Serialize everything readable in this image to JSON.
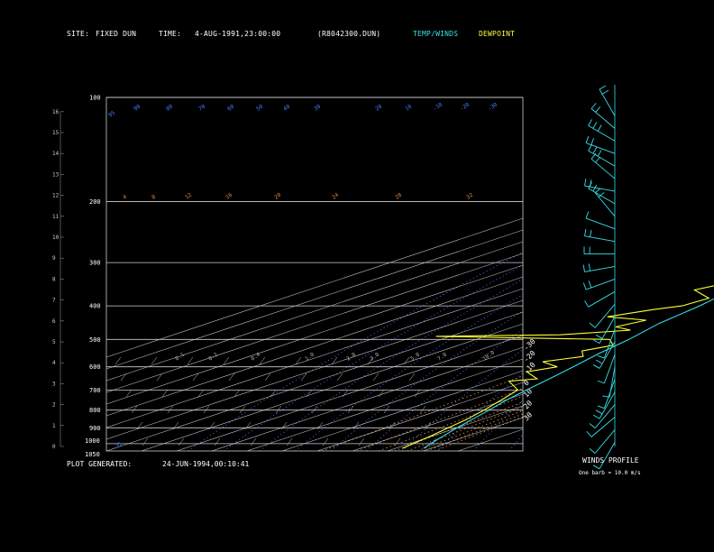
{
  "header": {
    "site_label": "SITE:",
    "site_value": "FIXED DUN",
    "time_label": "TIME:",
    "time_value": "4-AUG-1991,23:00:00",
    "file_value": "(R8042300.DUN)",
    "temp_legend": "TEMP/WINDS",
    "dew_legend": "DEWPOINT"
  },
  "footer": {
    "generated_label": "PLOT GENERATED:",
    "generated_value": "24-JUN-1994,00:10:41"
  },
  "winds": {
    "title": "WINDS PROFILE",
    "note": "One barb = 10.0 m/s"
  },
  "colors": {
    "temperature": "#33e0e8",
    "dewpoint": "#ffff33",
    "mixing_ratio": "#d8884a",
    "dry_adiabat": "#4a78ff",
    "grid": "#cfcfcf",
    "wind_barbs": "#33e0e8"
  },
  "chart_data": {
    "type": "line",
    "yaxis_pressure": {
      "label_values": [
        "100",
        "200",
        "300",
        "400",
        "500",
        "600",
        "700",
        "800",
        "900",
        "1000",
        "1050"
      ],
      "lim": [
        100,
        1050
      ],
      "scale": "log"
    },
    "yaxis_height_km": {
      "ticks": [
        "0",
        "1",
        "2",
        "3",
        "4",
        "5",
        "6",
        "7",
        "8",
        "9",
        "10",
        "11",
        "12",
        "13",
        "14",
        "15",
        "16"
      ]
    },
    "isotherm_labels_top": [
      "-110",
      "-100",
      "-90",
      "-80",
      "-70",
      "-60",
      "-50",
      "-40"
    ],
    "isotherm_labels_right": [
      "-30",
      "-20",
      "-10",
      "0",
      "10",
      "20",
      "30"
    ],
    "isotherm_values_top": [
      -110,
      -100,
      -90,
      -80,
      -70,
      -60,
      -50,
      -40
    ],
    "isotherm_values_right": [
      -30,
      -20,
      -10,
      0,
      10,
      20,
      30
    ],
    "dry_adiabat_labels": [
      "95",
      "90",
      "80",
      "70",
      "60",
      "50",
      "40",
      "30",
      "20",
      "10",
      "-10",
      "-20",
      "-30",
      "-35"
    ],
    "mixing_ratio_labels": [
      "4",
      "8",
      "12",
      "16",
      "20",
      "24",
      "28",
      "32"
    ],
    "mixing_ratio_lower_labels": [
      "0.1",
      "0.2",
      "0.4",
      "1.0",
      "2.0",
      "3.0",
      "5.0",
      "7.0",
      "10.0"
    ],
    "series": [
      {
        "name": "TEMP/WINDS",
        "points": [
          {
            "p": 1032,
            "t": 28.0
          },
          {
            "p": 1000,
            "t": 26.0
          },
          {
            "p": 950,
            "t": 23.0
          },
          {
            "p": 900,
            "t": 20.0
          },
          {
            "p": 850,
            "t": 17.0
          },
          {
            "p": 800,
            "t": 14.0
          },
          {
            "p": 750,
            "t": 10.5
          },
          {
            "p": 700,
            "t": 7.5
          },
          {
            "p": 650,
            "t": 4.5
          },
          {
            "p": 600,
            "t": 1.0
          },
          {
            "p": 550,
            "t": -3.0
          },
          {
            "p": 500,
            "t": -6.5
          },
          {
            "p": 450,
            "t": -11.5
          },
          {
            "p": 400,
            "t": -15.0
          },
          {
            "p": 350,
            "t": -20.5
          },
          {
            "p": 300,
            "t": -27.0
          },
          {
            "p": 250,
            "t": -35.0
          },
          {
            "p": 200,
            "t": -44.0
          },
          {
            "p": 170,
            "t": -51.0
          },
          {
            "p": 150,
            "t": -58.0
          },
          {
            "p": 140,
            "t": -63.0
          },
          {
            "p": 130,
            "t": -64.0
          },
          {
            "p": 120,
            "t": -66.0
          },
          {
            "p": 110,
            "t": -64.0
          },
          {
            "p": 100,
            "t": -63.5
          }
        ]
      },
      {
        "name": "DEWPOINT",
        "points": [
          {
            "p": 1032,
            "t": 22.0
          },
          {
            "p": 1000,
            "t": 21.0
          },
          {
            "p": 950,
            "t": 19.5
          },
          {
            "p": 900,
            "t": 17.5
          },
          {
            "p": 850,
            "t": 15.5
          },
          {
            "p": 800,
            "t": 12.5
          },
          {
            "p": 750,
            "t": 9.0
          },
          {
            "p": 700,
            "t": 5.0
          },
          {
            "p": 660,
            "t": -5.0
          },
          {
            "p": 650,
            "t": 1.0
          },
          {
            "p": 620,
            "t": -8.0
          },
          {
            "p": 600,
            "t": -3.5
          },
          {
            "p": 580,
            "t": -12.0
          },
          {
            "p": 560,
            "t": -5.0
          },
          {
            "p": 540,
            "t": -10.0
          },
          {
            "p": 520,
            "t": -6.0
          },
          {
            "p": 500,
            "t": -12.0
          },
          {
            "p": 495,
            "t": -40.0
          },
          {
            "p": 490,
            "t": -64.0
          },
          {
            "p": 485,
            "t": -30.0
          },
          {
            "p": 470,
            "t": -14.0
          },
          {
            "p": 460,
            "t": -21.0
          },
          {
            "p": 440,
            "t": -18.0
          },
          {
            "p": 430,
            "t": -32.0
          },
          {
            "p": 410,
            "t": -25.0
          },
          {
            "p": 400,
            "t": -20.0
          },
          {
            "p": 380,
            "t": -19.0
          },
          {
            "p": 360,
            "t": -30.0
          },
          {
            "p": 340,
            "t": -26.0
          },
          {
            "p": 330,
            "t": -35.0
          },
          {
            "p": 315,
            "t": -28.0
          },
          {
            "p": 300,
            "t": -40.0
          },
          {
            "p": 280,
            "t": -36.0
          },
          {
            "p": 265,
            "t": -48.0
          },
          {
            "p": 250,
            "t": -50.0
          },
          {
            "p": 230,
            "t": -56.0
          },
          {
            "p": 215,
            "t": -59.0
          },
          {
            "p": 208,
            "t": -62.0
          },
          {
            "p": 200,
            "t": -66.0
          }
        ]
      }
    ],
    "winds_profile": [
      {
        "h": 15.8,
        "dir": 330,
        "spd": 15
      },
      {
        "h": 15.2,
        "dir": 310,
        "spd": 20
      },
      {
        "h": 14.6,
        "dir": 300,
        "spd": 25
      },
      {
        "h": 14.0,
        "dir": 290,
        "spd": 20
      },
      {
        "h": 13.4,
        "dir": 300,
        "spd": 25
      },
      {
        "h": 12.8,
        "dir": 310,
        "spd": 15
      },
      {
        "h": 12.2,
        "dir": 280,
        "spd": 20
      },
      {
        "h": 11.6,
        "dir": 300,
        "spd": 20
      },
      {
        "h": 11.0,
        "dir": 320,
        "spd": 15
      },
      {
        "h": 10.4,
        "dir": 290,
        "spd": 10
      },
      {
        "h": 9.8,
        "dir": 280,
        "spd": 15
      },
      {
        "h": 9.2,
        "dir": 270,
        "spd": 20
      },
      {
        "h": 8.6,
        "dir": 260,
        "spd": 15
      },
      {
        "h": 8.0,
        "dir": 250,
        "spd": 15
      },
      {
        "h": 7.4,
        "dir": 240,
        "spd": 10
      },
      {
        "h": 6.8,
        "dir": 220,
        "spd": 10
      },
      {
        "h": 6.2,
        "dir": 210,
        "spd": 15
      },
      {
        "h": 5.6,
        "dir": 200,
        "spd": 10
      },
      {
        "h": 5.0,
        "dir": 210,
        "spd": 15
      },
      {
        "h": 4.4,
        "dir": 200,
        "spd": 10
      },
      {
        "h": 3.8,
        "dir": 190,
        "spd": 10
      },
      {
        "h": 3.2,
        "dir": 200,
        "spd": 10
      },
      {
        "h": 2.6,
        "dir": 210,
        "spd": 15
      },
      {
        "h": 2.0,
        "dir": 220,
        "spd": 10
      },
      {
        "h": 1.4,
        "dir": 230,
        "spd": 10
      },
      {
        "h": 0.8,
        "dir": 220,
        "spd": 5
      },
      {
        "h": 0.2,
        "dir": 210,
        "spd": 5
      }
    ]
  }
}
